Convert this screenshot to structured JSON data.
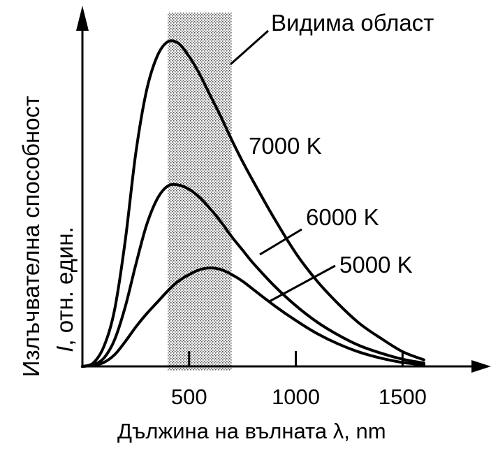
{
  "chart_data": {
    "type": "line",
    "xlabel": "Дължина на вълната λ, nm",
    "ylabel_line1": "Излъчвателна способност",
    "ylabel_line2_italic": "I",
    "ylabel_line2_rest": ", отн. един.",
    "xlim": [
      0,
      1800
    ],
    "ylim": [
      0,
      1.0
    ],
    "x_ticks": [
      500,
      1000,
      1500
    ],
    "x_tick_labels": [
      "500",
      "1000",
      "1500"
    ],
    "visible_region": {
      "label": "Видима област",
      "x_range": [
        400,
        700
      ]
    },
    "series": [
      {
        "name": "7000 K",
        "x": [
          0,
          50,
          100,
          150,
          200,
          250,
          300,
          350,
          400,
          450,
          500,
          550,
          600,
          650,
          700,
          750,
          800,
          900,
          1000,
          1100,
          1200,
          1300,
          1400,
          1500,
          1600
        ],
        "values": [
          0.0,
          0.01,
          0.06,
          0.17,
          0.38,
          0.65,
          0.84,
          0.945,
          0.99,
          0.985,
          0.945,
          0.89,
          0.825,
          0.76,
          0.69,
          0.625,
          0.565,
          0.45,
          0.345,
          0.26,
          0.19,
          0.13,
          0.085,
          0.045,
          0.02
        ]
      },
      {
        "name": "6000 K",
        "x": [
          0,
          50,
          100,
          150,
          200,
          250,
          300,
          350,
          400,
          450,
          500,
          550,
          600,
          650,
          700,
          750,
          800,
          900,
          1000,
          1100,
          1200,
          1300,
          1400,
          1500,
          1600
        ],
        "values": [
          0.0,
          0.005,
          0.025,
          0.08,
          0.18,
          0.31,
          0.43,
          0.51,
          0.55,
          0.553,
          0.54,
          0.515,
          0.48,
          0.44,
          0.395,
          0.355,
          0.315,
          0.245,
          0.185,
          0.135,
          0.095,
          0.063,
          0.04,
          0.022,
          0.01
        ]
      },
      {
        "name": "5000 K",
        "x": [
          0,
          50,
          100,
          150,
          200,
          250,
          300,
          350,
          400,
          450,
          500,
          550,
          600,
          650,
          700,
          750,
          800,
          900,
          1000,
          1100,
          1200,
          1300,
          1400,
          1500,
          1600
        ],
        "values": [
          0.0,
          0.003,
          0.012,
          0.035,
          0.075,
          0.12,
          0.16,
          0.195,
          0.23,
          0.26,
          0.28,
          0.295,
          0.3,
          0.295,
          0.28,
          0.26,
          0.235,
          0.185,
          0.14,
          0.1,
          0.068,
          0.043,
          0.025,
          0.012,
          0.005
        ]
      }
    ]
  }
}
